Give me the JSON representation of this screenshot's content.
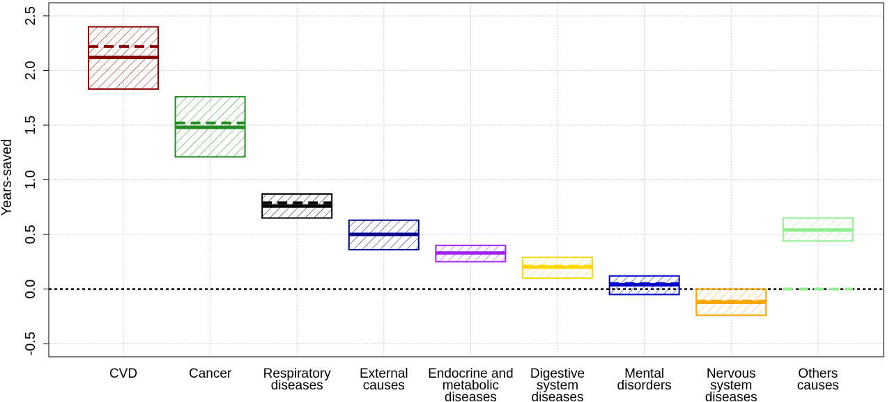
{
  "chart_data": {
    "type": "box",
    "ylabel": "Years-saved",
    "ylim": [
      -0.62,
      2.62
    ],
    "yticks": [
      "-0.5",
      "0.0",
      "0.5",
      "1.0",
      "1.5",
      "2.0",
      "2.5"
    ],
    "grid": true,
    "reference_line": 0,
    "categories": [
      {
        "label_lines": [
          "CVD"
        ],
        "color": "#8b0000",
        "lower": 1.83,
        "upper": 2.4,
        "solid": 2.12,
        "dashed": 2.22
      },
      {
        "label_lines": [
          "Cancer"
        ],
        "color": "#228b22",
        "lower": 1.21,
        "upper": 1.76,
        "solid": 1.48,
        "dashed": 1.52
      },
      {
        "label_lines": [
          "Respiratory",
          "diseases"
        ],
        "color": "#000000",
        "lower": 0.65,
        "upper": 0.87,
        "solid": 0.76,
        "dashed": 0.79
      },
      {
        "label_lines": [
          "External",
          "causes"
        ],
        "color": "#00008b",
        "lower": 0.36,
        "upper": 0.63,
        "solid": 0.5,
        "dashed": 0.5
      },
      {
        "label_lines": [
          "Endocrine and",
          "metabolic",
          "diseases"
        ],
        "color": "#a020f0",
        "lower": 0.25,
        "upper": 0.4,
        "solid": 0.33,
        "dashed": 0.33
      },
      {
        "label_lines": [
          "Digestive",
          "system",
          "diseases"
        ],
        "color": "#ffd700",
        "lower": 0.1,
        "upper": 0.29,
        "solid": 0.2,
        "dashed": 0.21
      },
      {
        "label_lines": [
          "Mental",
          "disorders"
        ],
        "color": "#0000cd",
        "lower": -0.05,
        "upper": 0.12,
        "solid": 0.04,
        "dashed": 0.05
      },
      {
        "label_lines": [
          "Nervous",
          "system",
          "diseases"
        ],
        "color": "#ffa500",
        "lower": -0.24,
        "upper": 0.0,
        "solid": -0.12,
        "dashed": -0.11
      },
      {
        "label_lines": [
          "Others",
          "causes"
        ],
        "color": "#90ee90",
        "lower": 0.44,
        "upper": 0.65,
        "solid": 0.54,
        "dashed": 0.0
      }
    ]
  }
}
